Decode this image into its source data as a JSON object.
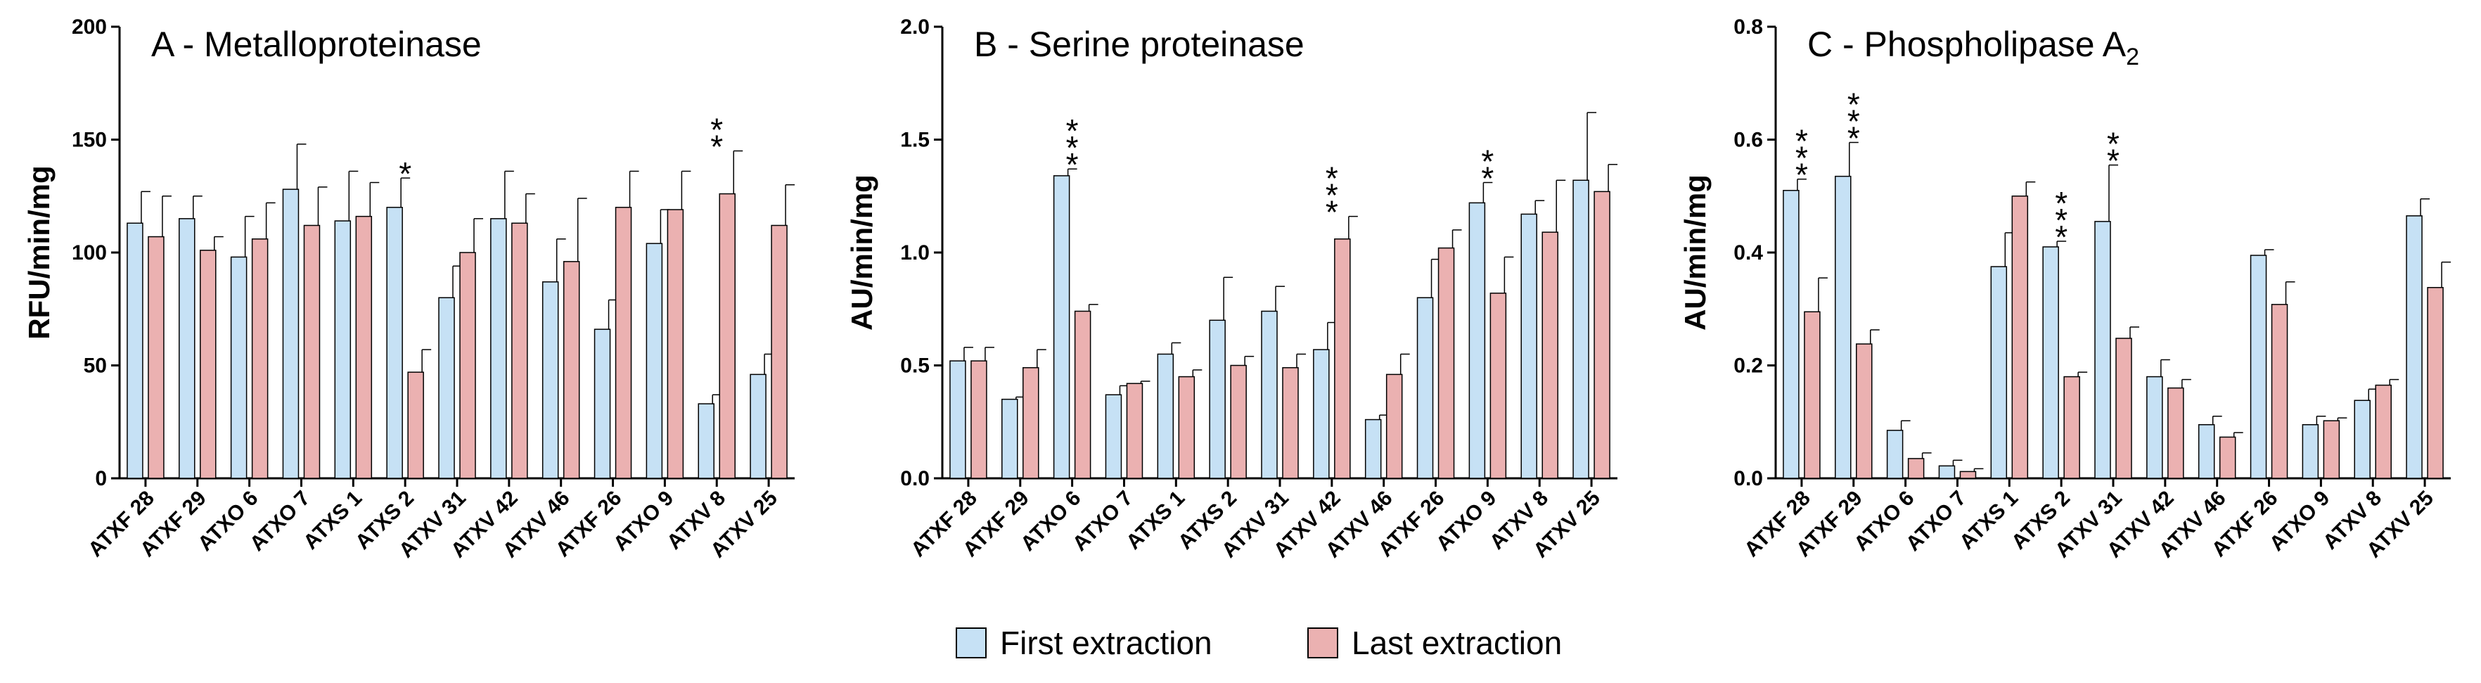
{
  "colors": {
    "first": "#c6e1f5",
    "last": "#ebb1b1",
    "stroke": "#000000"
  },
  "legend": [
    {
      "key": "first",
      "label": "First extraction"
    },
    {
      "key": "last",
      "label": "Last extraction"
    }
  ],
  "chart_data": [
    {
      "type": "bar",
      "title": "A - Metalloproteinase",
      "ylabel": "RFU/min/mg",
      "ylim": [
        0,
        200
      ],
      "yticks": [
        "0",
        "50",
        "100",
        "150",
        "200"
      ],
      "categories": [
        "ATXF 28",
        "ATXF 29",
        "ATXO 6",
        "ATXO 7",
        "ATXS 1",
        "ATXS 2",
        "ATXV 31",
        "ATXV 42",
        "ATXV 46",
        "ATXF 26",
        "ATXO 9",
        "ATXV 8",
        "ATXV 25"
      ],
      "series": [
        {
          "name": "First extraction",
          "values": [
            113,
            115,
            98,
            128,
            114,
            120,
            80,
            115,
            87,
            66,
            104,
            33,
            46
          ],
          "errors": [
            14,
            10,
            18,
            20,
            22,
            13,
            14,
            21,
            19,
            13,
            15,
            4,
            9
          ]
        },
        {
          "name": "Last extraction",
          "values": [
            107,
            101,
            106,
            112,
            116,
            47,
            100,
            113,
            96,
            120,
            119,
            126,
            112
          ],
          "errors": [
            18,
            6,
            16,
            17,
            15,
            10,
            15,
            13,
            28,
            16,
            17,
            19,
            18
          ]
        }
      ],
      "significance": [
        {
          "category": "ATXS 2",
          "label": "*"
        },
        {
          "category": "ATXV 8",
          "label": "**"
        }
      ]
    },
    {
      "type": "bar",
      "title": "B - Serine proteinase",
      "ylabel": "AU/min/mg",
      "ylim": [
        0,
        2.0
      ],
      "yticks": [
        "0.0",
        "0.5",
        "1.0",
        "1.5",
        "2.0"
      ],
      "categories": [
        "ATXF 28",
        "ATXF 29",
        "ATXO 6",
        "ATXO 7",
        "ATXS 1",
        "ATXS 2",
        "ATXV 31",
        "ATXV 42",
        "ATXV 46",
        "ATXF 26",
        "ATXO 9",
        "ATXV 8",
        "ATXV 25"
      ],
      "series": [
        {
          "name": "First extraction",
          "values": [
            0.52,
            0.35,
            1.34,
            0.37,
            0.55,
            0.7,
            0.74,
            0.57,
            0.26,
            0.8,
            1.22,
            1.17,
            1.32
          ],
          "errors": [
            0.06,
            0.01,
            0.03,
            0.04,
            0.05,
            0.19,
            0.11,
            0.12,
            0.02,
            0.17,
            0.09,
            0.06,
            0.3
          ]
        },
        {
          "name": "Last extraction",
          "values": [
            0.52,
            0.49,
            0.74,
            0.42,
            0.45,
            0.5,
            0.49,
            1.06,
            0.46,
            1.02,
            0.82,
            1.09,
            1.27
          ],
          "errors": [
            0.06,
            0.08,
            0.03,
            0.01,
            0.03,
            0.04,
            0.06,
            0.1,
            0.09,
            0.08,
            0.16,
            0.23,
            0.12
          ]
        }
      ],
      "significance": [
        {
          "category": "ATXO 6",
          "label": "***"
        },
        {
          "category": "ATXV 42",
          "label": "***"
        },
        {
          "category": "ATXO 9",
          "label": "**"
        }
      ]
    },
    {
      "type": "bar",
      "title": "C - Phospholipase A",
      "title_sub": "2",
      "ylabel": "AU/min/mg",
      "ylim": [
        0,
        0.8
      ],
      "yticks": [
        "0.0",
        "0.2",
        "0.4",
        "0.6",
        "0.8"
      ],
      "categories": [
        "ATXF 28",
        "ATXF 29",
        "ATXO 6",
        "ATXO 7",
        "ATXS 1",
        "ATXS 2",
        "ATXV 31",
        "ATXV 42",
        "ATXV 46",
        "ATXF 26",
        "ATXO 9",
        "ATXV 8",
        "ATXV 25"
      ],
      "series": [
        {
          "name": "First extraction",
          "values": [
            0.51,
            0.535,
            0.085,
            0.022,
            0.375,
            0.41,
            0.455,
            0.18,
            0.095,
            0.395,
            0.095,
            0.138,
            0.465
          ],
          "errors": [
            0.02,
            0.06,
            0.017,
            0.01,
            0.06,
            0.01,
            0.1,
            0.03,
            0.015,
            0.01,
            0.015,
            0.02,
            0.03
          ]
        },
        {
          "name": "Last extraction",
          "values": [
            0.295,
            0.238,
            0.035,
            0.012,
            0.5,
            0.18,
            0.248,
            0.16,
            0.073,
            0.308,
            0.102,
            0.165,
            0.338
          ],
          "errors": [
            0.06,
            0.025,
            0.01,
            0.005,
            0.025,
            0.008,
            0.02,
            0.015,
            0.008,
            0.04,
            0.005,
            0.01,
            0.045
          ]
        }
      ],
      "significance": [
        {
          "category": "ATXF 28",
          "label": "***"
        },
        {
          "category": "ATXF 29",
          "label": "***"
        },
        {
          "category": "ATXS 2",
          "label": "***"
        },
        {
          "category": "ATXV 31",
          "label": "**"
        }
      ]
    }
  ]
}
